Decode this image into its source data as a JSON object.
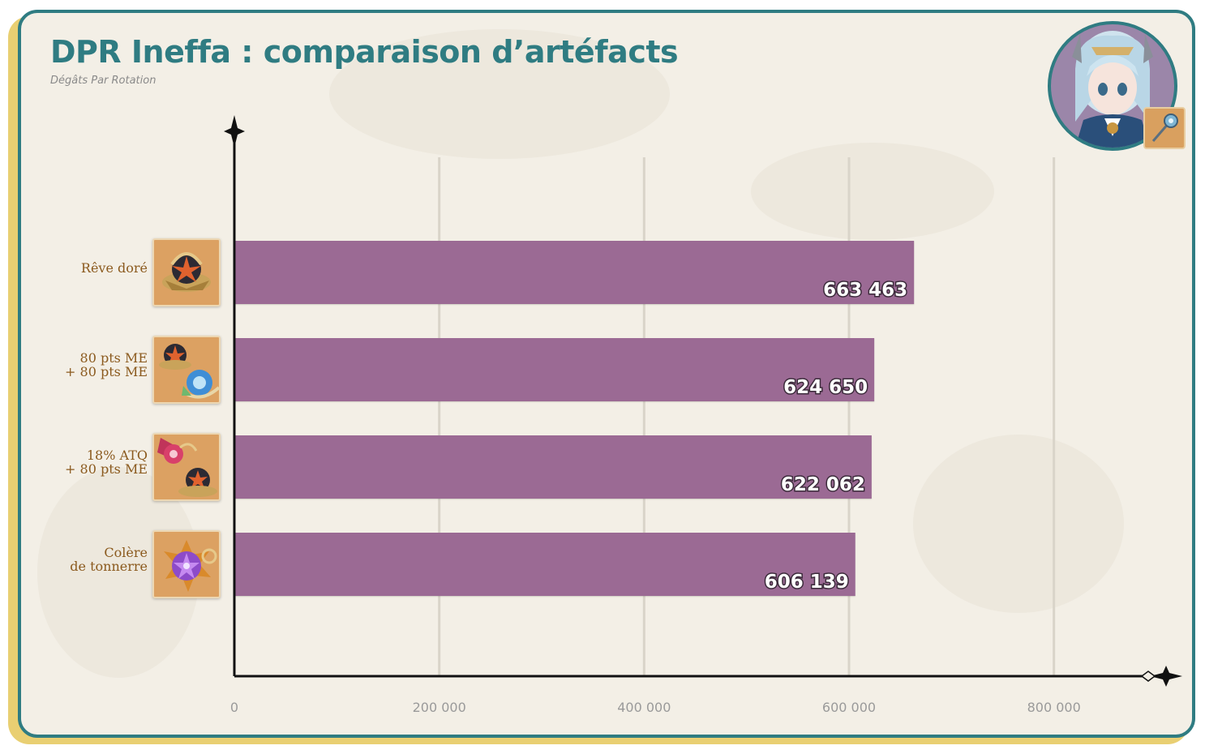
{
  "title": "DPR Ineffa : comparaison d’artéfacts",
  "subtitle": "Dégâts Par Rotation",
  "colors": {
    "bar": "#9b6b94",
    "title": "#2f7c82",
    "frame": "#2f7c82",
    "frame_shadow": "#e9cf72",
    "label": "#8b5a1e",
    "tick": "#9a9a9a"
  },
  "icons": {
    "portrait": "character-portrait-icon",
    "weapon": "polearm-weapon-icon"
  },
  "chart_data": {
    "type": "bar",
    "orientation": "horizontal",
    "categories": [
      [
        "Rêve doré"
      ],
      [
        "80 pts ME",
        "+ 80 pts ME"
      ],
      [
        "18% ATQ",
        "+ 80 pts ME"
      ],
      [
        "Colère",
        "de tonnerre"
      ]
    ],
    "category_icons": [
      "golden-dream-artifact-icon",
      "em-em-artifact-combo-icon",
      "atk-em-artifact-combo-icon",
      "thundering-fury-artifact-icon"
    ],
    "values": [
      663463,
      624650,
      622062,
      606139
    ],
    "value_labels": [
      "663 463",
      "624 650",
      "622 062",
      "606 139"
    ],
    "xlim": [
      0,
      900000
    ],
    "xticks": [
      0,
      200000,
      400000,
      600000,
      800000
    ],
    "xtick_labels": [
      "0",
      "200 000",
      "400 000",
      "600 000",
      "800 000"
    ],
    "grid": "vertical",
    "legend": "none",
    "xlabel": "",
    "ylabel": ""
  }
}
